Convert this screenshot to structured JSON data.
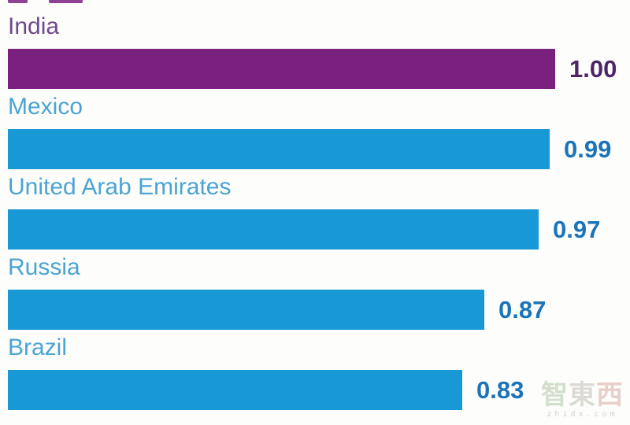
{
  "chart_data": {
    "type": "bar",
    "orientation": "horizontal",
    "title": "",
    "categories": [
      "India",
      "Mexico",
      "United Arab Emirates",
      "Russia",
      "Brazil"
    ],
    "values": [
      1.0,
      0.99,
      0.97,
      0.87,
      0.83
    ],
    "value_labels": [
      "1.00",
      "0.99",
      "0.97",
      "0.87",
      "0.83"
    ],
    "xlim": [
      0,
      1
    ],
    "grid": false,
    "legend": false,
    "highlight_index": 0,
    "colors": {
      "bar_default": "#1898d5",
      "bar_highlight": "#7a2180",
      "category_label_default": "#4aa4d4",
      "category_label_highlight": "#6e4a8c",
      "value_label_default": "#1b74ba",
      "value_label_highlight": "#4e2566"
    }
  },
  "watermark": {
    "char1": "智",
    "char2": "東",
    "char3": "西",
    "url": "zhidx.com"
  }
}
